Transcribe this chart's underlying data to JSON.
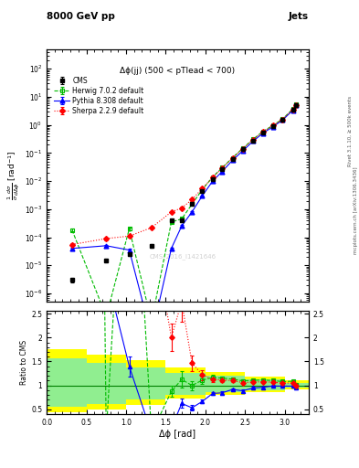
{
  "title_top": "8000 GeV pp",
  "title_right": "Jets",
  "annotation": "Δϕ(jj) (500 < pTlead < 700)",
  "watermark": "CMS_2016_I1421646",
  "ylabel_main": "$\\frac{1}{\\sigma}\\frac{d\\sigma}{d\\Delta\\phi}$ [rad$^{-1}$]",
  "ylabel_ratio": "Ratio to CMS",
  "xlabel": "Δϕ [rad]",
  "right_label": "Rivet 3.1.10, ≥ 500k events",
  "right_label2": "mcplots.cern.ch [arXiv:1306.3436]",
  "cms_x": [
    0.32,
    0.75,
    1.04,
    1.32,
    1.57,
    1.7,
    1.83,
    1.96,
    2.09,
    2.21,
    2.34,
    2.47,
    2.6,
    2.72,
    2.85,
    2.97,
    3.1,
    3.14
  ],
  "cms_y": [
    3e-06,
    1.5e-05,
    2.5e-05,
    5e-05,
    0.0004,
    0.0004,
    0.0015,
    0.0045,
    0.012,
    0.026,
    0.06,
    0.135,
    0.28,
    0.52,
    0.88,
    1.5,
    3.4,
    5.2
  ],
  "cms_yerr": [
    5e-07,
    2e-06,
    3e-06,
    6e-06,
    4e-05,
    5e-05,
    0.0001,
    0.0002,
    0.0003,
    0.0006,
    0.0012,
    0.0025,
    0.005,
    0.008,
    0.012,
    0.025,
    0.06,
    0.12
  ],
  "herwig_x": [
    0.32,
    0.75,
    1.04,
    1.32,
    1.57,
    1.7,
    1.83,
    1.96,
    2.09,
    2.21,
    2.34,
    2.47,
    2.6,
    2.72,
    2.85,
    2.97,
    3.1,
    3.14
  ],
  "herwig_y": [
    0.00018,
    1.5e-07,
    0.0002,
    1e-07,
    0.00035,
    0.00045,
    0.0015,
    0.005,
    0.014,
    0.03,
    0.068,
    0.148,
    0.31,
    0.58,
    0.97,
    1.62,
    3.7,
    5.3
  ],
  "herwig_yerr": [
    2e-05,
    5e-08,
    2e-05,
    5e-08,
    3e-05,
    4e-05,
    0.0001,
    0.0003,
    0.0005,
    0.0007,
    0.0015,
    0.003,
    0.006,
    0.01,
    0.015,
    0.03,
    0.07,
    0.15
  ],
  "pythia_x": [
    0.32,
    0.75,
    1.04,
    1.32,
    1.57,
    1.7,
    1.83,
    1.96,
    2.09,
    2.21,
    2.34,
    2.47,
    2.6,
    2.72,
    2.85,
    2.97,
    3.1,
    3.14
  ],
  "pythia_y": [
    4e-05,
    5e-05,
    3.5e-05,
    3e-08,
    4e-05,
    0.00025,
    0.0008,
    0.003,
    0.01,
    0.022,
    0.055,
    0.12,
    0.265,
    0.5,
    0.87,
    1.48,
    3.35,
    5.0
  ],
  "pythia_yerr": [
    4e-06,
    5e-06,
    3e-06,
    5e-09,
    4e-06,
    2e-05,
    7e-05,
    0.00015,
    0.0003,
    0.0005,
    0.0012,
    0.0025,
    0.005,
    0.009,
    0.013,
    0.025,
    0.06,
    0.13
  ],
  "sherpa_x": [
    0.32,
    0.75,
    1.04,
    1.32,
    1.57,
    1.7,
    1.83,
    1.96,
    2.09,
    2.21,
    2.34,
    2.47,
    2.6,
    2.72,
    2.85,
    2.97,
    3.1,
    3.14
  ],
  "sherpa_y": [
    5.5e-05,
    9e-05,
    0.00011,
    0.00022,
    0.0008,
    0.0011,
    0.0022,
    0.0055,
    0.0135,
    0.029,
    0.066,
    0.143,
    0.3,
    0.56,
    0.94,
    1.57,
    3.58,
    5.15
  ],
  "sherpa_yerr": [
    7e-06,
    1e-05,
    1.2e-05,
    2.2e-05,
    8e-05,
    0.0001,
    0.0002,
    0.0004,
    0.0005,
    0.0007,
    0.0015,
    0.003,
    0.006,
    0.01,
    0.015,
    0.03,
    0.07,
    0.14
  ],
  "cms_color": "#000000",
  "herwig_color": "#00bb00",
  "pythia_color": "#0000ff",
  "sherpa_color": "#ff0000",
  "ylim_main": [
    5e-07,
    500.0
  ],
  "ylim_ratio": [
    0.4,
    2.55
  ],
  "xlim": [
    0.0,
    3.3
  ],
  "yellow_band_edges": [
    0.0,
    0.5,
    1.0,
    1.5,
    2.0,
    2.5,
    3.0,
    3.3
  ],
  "yellow_band_ylo": [
    0.44,
    0.5,
    0.6,
    0.72,
    0.8,
    0.86,
    0.92,
    0.92
  ],
  "yellow_band_yhi": [
    1.75,
    1.65,
    1.52,
    1.38,
    1.28,
    1.18,
    1.1,
    1.1
  ],
  "green_band_edges": [
    0.0,
    0.5,
    1.0,
    1.5,
    2.0,
    2.5,
    3.0,
    3.3
  ],
  "green_band_ylo": [
    0.56,
    0.62,
    0.7,
    0.8,
    0.86,
    0.9,
    0.95,
    0.95
  ],
  "green_band_yhi": [
    1.56,
    1.48,
    1.38,
    1.26,
    1.2,
    1.12,
    1.06,
    1.06
  ]
}
